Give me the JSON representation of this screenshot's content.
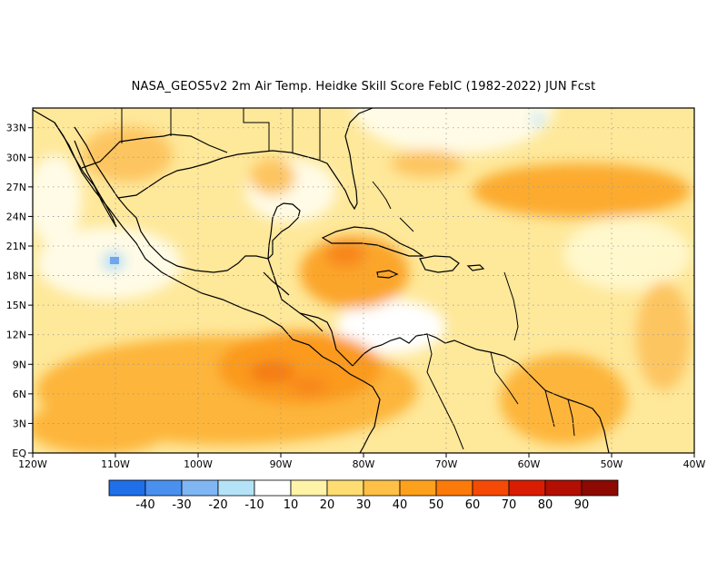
{
  "title": "NASA_GEOS5v2  2m Air Temp. Heidke Skill Score FebIC (1982-2022) JUN Fcst",
  "map": {
    "lon_range": [
      -120,
      -40
    ],
    "lat_range": [
      0,
      35
    ],
    "lon_ticks": [
      "120W",
      "110W",
      "100W",
      "90W",
      "80W",
      "70W",
      "60W",
      "50W",
      "40W"
    ],
    "lat_ticks": [
      "EQ",
      "3N",
      "6N",
      "9N",
      "12N",
      "15N",
      "18N",
      "21N",
      "24N",
      "27N",
      "30N",
      "33N"
    ],
    "grid": "dotted",
    "coastline_color": "#000000"
  },
  "colorbar": {
    "labels": [
      "-40",
      "-30",
      "-20",
      "-10",
      "10",
      "20",
      "30",
      "40",
      "50",
      "60",
      "70",
      "80",
      "90"
    ],
    "colors": [
      "#1f6fe8",
      "#4a91ef",
      "#7fb6f3",
      "#b4e3f7",
      "#ffffff",
      "#fff3a8",
      "#fedd72",
      "#fec046",
      "#fda11d",
      "#fb7a0a",
      "#f44a06",
      "#d91d02",
      "#b30e02",
      "#8c0a02"
    ]
  }
}
